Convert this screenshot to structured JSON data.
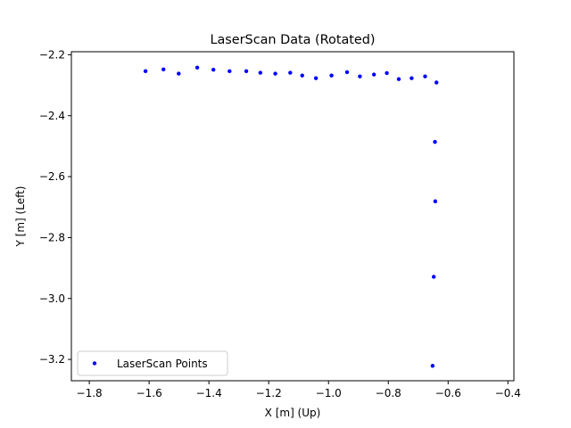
{
  "chart_data": {
    "type": "scatter",
    "title": "LaserScan Data (Rotated)",
    "xlabel": "X [m] (Up)",
    "ylabel": "Y [m] (Left)",
    "xlim": [
      -1.86,
      -0.38
    ],
    "ylim": [
      -3.27,
      -2.19
    ],
    "xticks": [
      -1.8,
      -1.6,
      -1.4,
      -1.2,
      -1.0,
      -0.8,
      -0.6,
      -0.4
    ],
    "yticks": [
      -2.2,
      -2.4,
      -2.6,
      -2.8,
      -3.0,
      -3.2
    ],
    "xtick_labels": [
      "−1.8",
      "−1.6",
      "−1.4",
      "−1.2",
      "−1.0",
      "−0.8",
      "−0.6",
      "−0.4"
    ],
    "ytick_labels": [
      "−2.2",
      "−2.4",
      "−2.6",
      "−2.8",
      "−3.0",
      "−3.2"
    ],
    "grid": false,
    "legend_position": "lower-left",
    "series": [
      {
        "name": "LaserScan Points",
        "color": "#0000ff",
        "marker": "circle",
        "points": [
          {
            "x": -1.612,
            "y": -2.254
          },
          {
            "x": -1.552,
            "y": -2.248
          },
          {
            "x": -1.501,
            "y": -2.262
          },
          {
            "x": -1.439,
            "y": -2.242
          },
          {
            "x": -1.385,
            "y": -2.249
          },
          {
            "x": -1.331,
            "y": -2.254
          },
          {
            "x": -1.275,
            "y": -2.254
          },
          {
            "x": -1.228,
            "y": -2.259
          },
          {
            "x": -1.178,
            "y": -2.262
          },
          {
            "x": -1.128,
            "y": -2.259
          },
          {
            "x": -1.088,
            "y": -2.268
          },
          {
            "x": -1.042,
            "y": -2.277
          },
          {
            "x": -0.99,
            "y": -2.268
          },
          {
            "x": -0.938,
            "y": -2.257
          },
          {
            "x": -0.895,
            "y": -2.271
          },
          {
            "x": -0.848,
            "y": -2.265
          },
          {
            "x": -0.805,
            "y": -2.26
          },
          {
            "x": -0.765,
            "y": -2.28
          },
          {
            "x": -0.722,
            "y": -2.277
          },
          {
            "x": -0.677,
            "y": -2.271
          },
          {
            "x": -0.639,
            "y": -2.291
          },
          {
            "x": -0.644,
            "y": -2.486
          },
          {
            "x": -0.643,
            "y": -2.681
          },
          {
            "x": -0.648,
            "y": -2.929
          },
          {
            "x": -0.652,
            "y": -3.221
          }
        ]
      }
    ]
  }
}
